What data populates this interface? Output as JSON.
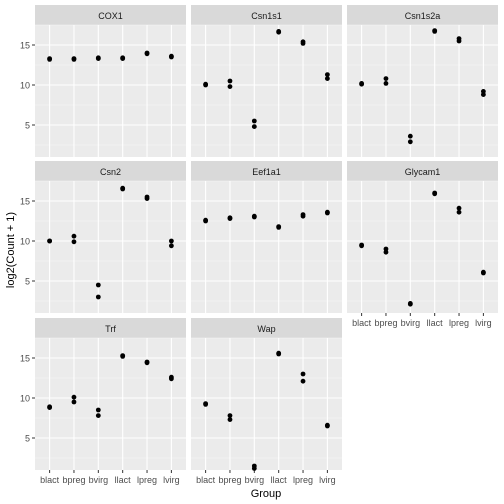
{
  "chart_data": {
    "type": "scatter",
    "title": "",
    "xlabel": "Group",
    "ylabel": "log2(Count + 1)",
    "categories": [
      "blact",
      "bpreg",
      "bvirg",
      "llact",
      "lpreg",
      "lvirg"
    ],
    "ylim": [
      1.0,
      17.5
    ],
    "y_ticks": [
      5,
      10,
      15
    ],
    "grid": true,
    "facet_layout": {
      "columns": 3,
      "rows": 3
    },
    "colors": {
      "panel_bg": "#EBEBEB",
      "strip_bg": "#D9D9D9",
      "grid_major": "#FFFFFF",
      "grid_minor": "#F5F5F5",
      "point": "#000000",
      "text": "#4D4D4D",
      "title_text": "#1A1A1A"
    },
    "panels": [
      {
        "name": "COX1",
        "points": [
          {
            "x": "blact",
            "y": 13.3
          },
          {
            "x": "blact",
            "y": 13.2
          },
          {
            "x": "bpreg",
            "y": 13.3
          },
          {
            "x": "bpreg",
            "y": 13.2
          },
          {
            "x": "bvirg",
            "y": 13.4
          },
          {
            "x": "bvirg",
            "y": 13.3
          },
          {
            "x": "llact",
            "y": 13.3
          },
          {
            "x": "llact",
            "y": 13.4
          },
          {
            "x": "lpreg",
            "y": 13.9
          },
          {
            "x": "lpreg",
            "y": 14.0
          },
          {
            "x": "lvirg",
            "y": 13.5
          },
          {
            "x": "lvirg",
            "y": 13.6
          }
        ]
      },
      {
        "name": "Csn1s1",
        "points": [
          {
            "x": "blact",
            "y": 10.0
          },
          {
            "x": "blact",
            "y": 10.1
          },
          {
            "x": "bpreg",
            "y": 10.5
          },
          {
            "x": "bpreg",
            "y": 9.8
          },
          {
            "x": "bvirg",
            "y": 5.5
          },
          {
            "x": "bvirg",
            "y": 4.8
          },
          {
            "x": "llact",
            "y": 16.7
          },
          {
            "x": "llact",
            "y": 16.6
          },
          {
            "x": "lpreg",
            "y": 15.4
          },
          {
            "x": "lpreg",
            "y": 15.2
          },
          {
            "x": "lvirg",
            "y": 11.3
          },
          {
            "x": "lvirg",
            "y": 10.8
          }
        ]
      },
      {
        "name": "Csn1s2a",
        "points": [
          {
            "x": "blact",
            "y": 10.1
          },
          {
            "x": "blact",
            "y": 10.2
          },
          {
            "x": "bpreg",
            "y": 10.8
          },
          {
            "x": "bpreg",
            "y": 10.2
          },
          {
            "x": "bvirg",
            "y": 3.6
          },
          {
            "x": "bvirg",
            "y": 2.9
          },
          {
            "x": "llact",
            "y": 16.8
          },
          {
            "x": "llact",
            "y": 16.7
          },
          {
            "x": "lpreg",
            "y": 15.8
          },
          {
            "x": "lpreg",
            "y": 15.5
          },
          {
            "x": "lvirg",
            "y": 9.2
          },
          {
            "x": "lvirg",
            "y": 8.8
          }
        ]
      },
      {
        "name": "Csn2",
        "points": [
          {
            "x": "blact",
            "y": 10.0
          },
          {
            "x": "blact",
            "y": 10.0
          },
          {
            "x": "bpreg",
            "y": 10.6
          },
          {
            "x": "bpreg",
            "y": 9.9
          },
          {
            "x": "bvirg",
            "y": 4.5
          },
          {
            "x": "bvirg",
            "y": 3.0
          },
          {
            "x": "llact",
            "y": 16.5
          },
          {
            "x": "llact",
            "y": 16.6
          },
          {
            "x": "lpreg",
            "y": 15.5
          },
          {
            "x": "lpreg",
            "y": 15.3
          },
          {
            "x": "lvirg",
            "y": 10.0
          },
          {
            "x": "lvirg",
            "y": 9.4
          }
        ]
      },
      {
        "name": "Eef1a1",
        "points": [
          {
            "x": "blact",
            "y": 12.5
          },
          {
            "x": "blact",
            "y": 12.6
          },
          {
            "x": "bpreg",
            "y": 12.9
          },
          {
            "x": "bpreg",
            "y": 12.8
          },
          {
            "x": "bvirg",
            "y": 13.1
          },
          {
            "x": "bvirg",
            "y": 13.0
          },
          {
            "x": "llact",
            "y": 11.7
          },
          {
            "x": "llact",
            "y": 11.8
          },
          {
            "x": "lpreg",
            "y": 13.3
          },
          {
            "x": "lpreg",
            "y": 13.1
          },
          {
            "x": "lvirg",
            "y": 13.6
          },
          {
            "x": "lvirg",
            "y": 13.5
          }
        ]
      },
      {
        "name": "Glycam1",
        "points": [
          {
            "x": "blact",
            "y": 9.5
          },
          {
            "x": "blact",
            "y": 9.4
          },
          {
            "x": "bpreg",
            "y": 9.0
          },
          {
            "x": "bpreg",
            "y": 8.6
          },
          {
            "x": "bvirg",
            "y": 2.2
          },
          {
            "x": "bvirg",
            "y": 2.1
          },
          {
            "x": "llact",
            "y": 15.9
          },
          {
            "x": "llact",
            "y": 16.0
          },
          {
            "x": "lpreg",
            "y": 14.1
          },
          {
            "x": "lpreg",
            "y": 13.6
          },
          {
            "x": "lvirg",
            "y": 6.1
          },
          {
            "x": "lvirg",
            "y": 6.0
          }
        ]
      },
      {
        "name": "Trf",
        "points": [
          {
            "x": "blact",
            "y": 8.9
          },
          {
            "x": "blact",
            "y": 8.8
          },
          {
            "x": "bpreg",
            "y": 10.1
          },
          {
            "x": "bpreg",
            "y": 9.5
          },
          {
            "x": "bvirg",
            "y": 8.5
          },
          {
            "x": "bvirg",
            "y": 7.8
          },
          {
            "x": "llact",
            "y": 15.3
          },
          {
            "x": "llact",
            "y": 15.2
          },
          {
            "x": "lpreg",
            "y": 14.5
          },
          {
            "x": "lpreg",
            "y": 14.4
          },
          {
            "x": "lvirg",
            "y": 12.6
          },
          {
            "x": "lvirg",
            "y": 12.4
          }
        ]
      },
      {
        "name": "Wap",
        "points": [
          {
            "x": "blact",
            "y": 9.3
          },
          {
            "x": "blact",
            "y": 9.2
          },
          {
            "x": "bpreg",
            "y": 7.8
          },
          {
            "x": "bpreg",
            "y": 7.3
          },
          {
            "x": "bvirg",
            "y": 1.5
          },
          {
            "x": "bvirg",
            "y": 1.2
          },
          {
            "x": "llact",
            "y": 15.6
          },
          {
            "x": "llact",
            "y": 15.5
          },
          {
            "x": "lpreg",
            "y": 13.0
          },
          {
            "x": "lpreg",
            "y": 12.1
          },
          {
            "x": "lvirg",
            "y": 6.6
          },
          {
            "x": "lvirg",
            "y": 6.5
          }
        ]
      }
    ]
  }
}
